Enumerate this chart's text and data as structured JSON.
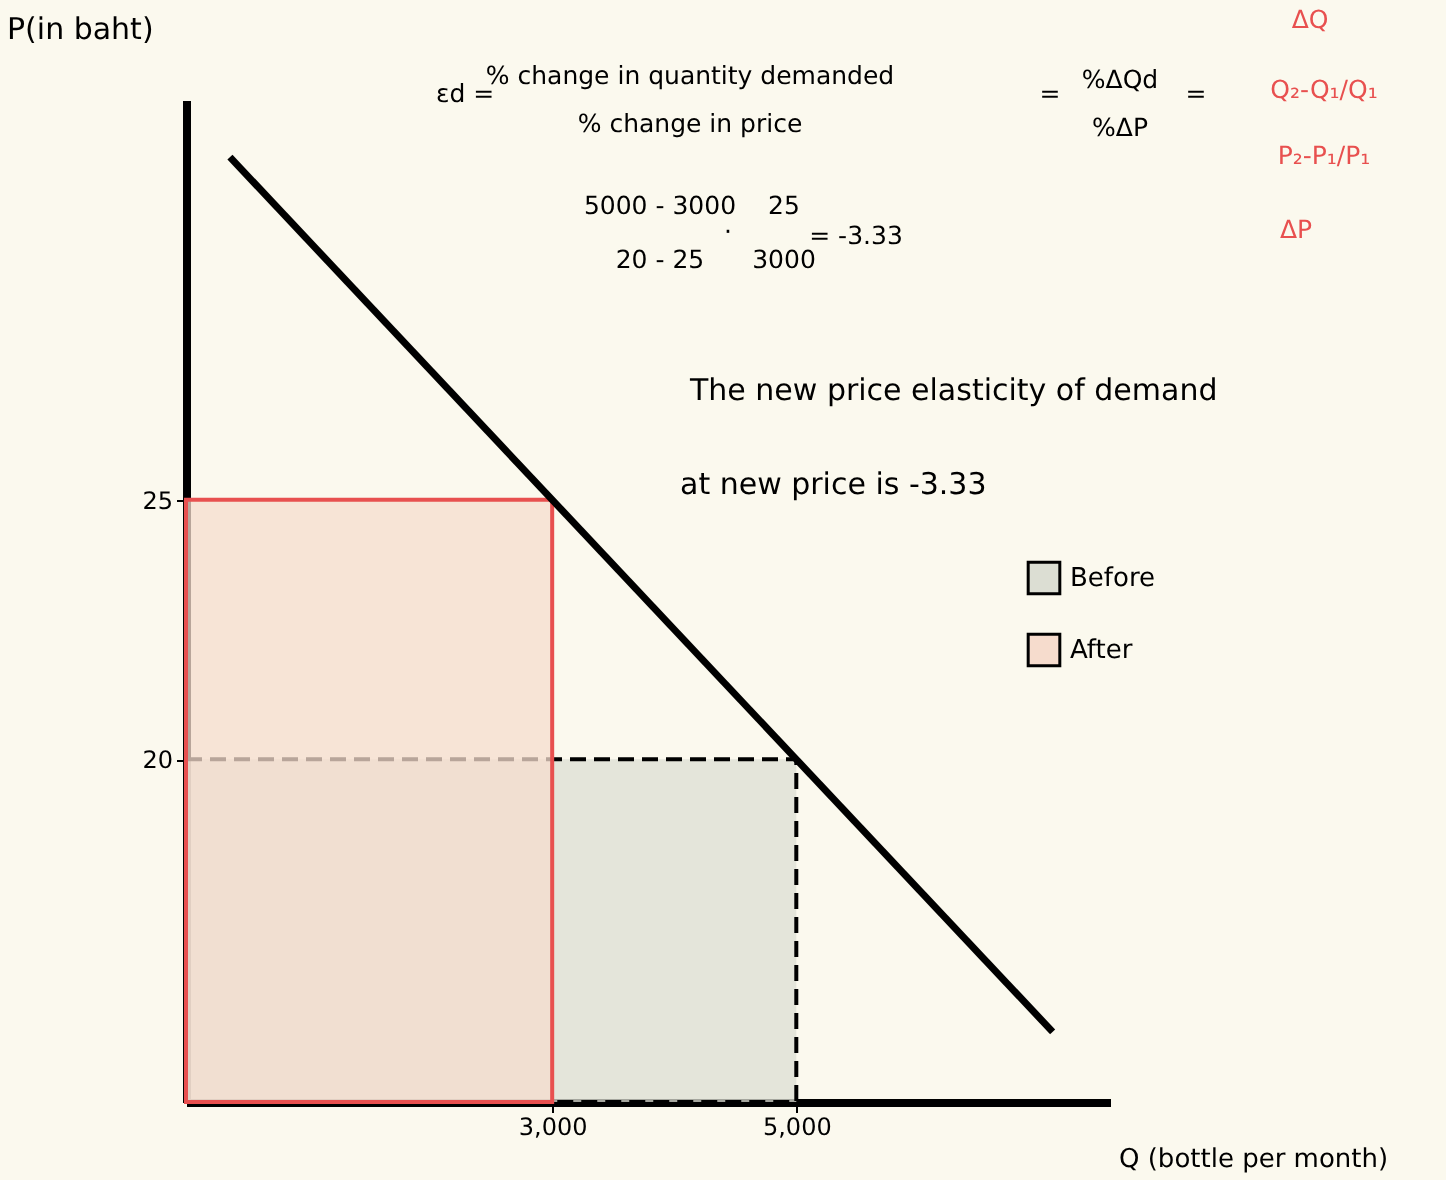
{
  "chart_data": {
    "type": "area",
    "xlabel": "Q (bottle per month)",
    "ylabel": "P(in baht)",
    "xlim": [
      0,
      7570
    ],
    "ylim": [
      13.4,
      32.7
    ],
    "xticks": [
      {
        "value": 3000,
        "label": "3,000"
      },
      {
        "value": 5000,
        "label": "5,000"
      }
    ],
    "yticks": [
      20,
      25
    ],
    "legend": "right",
    "series": [
      {
        "name": "Before",
        "color": "#dcded3",
        "x": [
          0,
          5000
        ],
        "values": [
          20,
          20
        ],
        "line_style": "dashed"
      },
      {
        "name": "After",
        "color": "#f6dccd",
        "x": [
          0,
          3000
        ],
        "values": [
          25,
          25
        ],
        "line_style": "solid"
      },
      {
        "type": "line",
        "color": "#000000",
        "x": [
          360,
          7100
        ],
        "values": [
          31.6,
          14.75
        ]
      }
    ],
    "annotations": [
      "εd =",
      "% change in quantity demanded",
      "% change in price",
      "=",
      "%ΔQd",
      "%ΔP",
      "=",
      "ΔQ",
      "Q₂-Q₁/Q₁",
      "P₂-P₁/P₁",
      "ΔP",
      "5000 - 3000",
      "20 - 25",
      "·",
      "25",
      "3000",
      "= -3.33",
      "The new price elasticity of demand",
      "at new price is -3.33"
    ]
  }
}
